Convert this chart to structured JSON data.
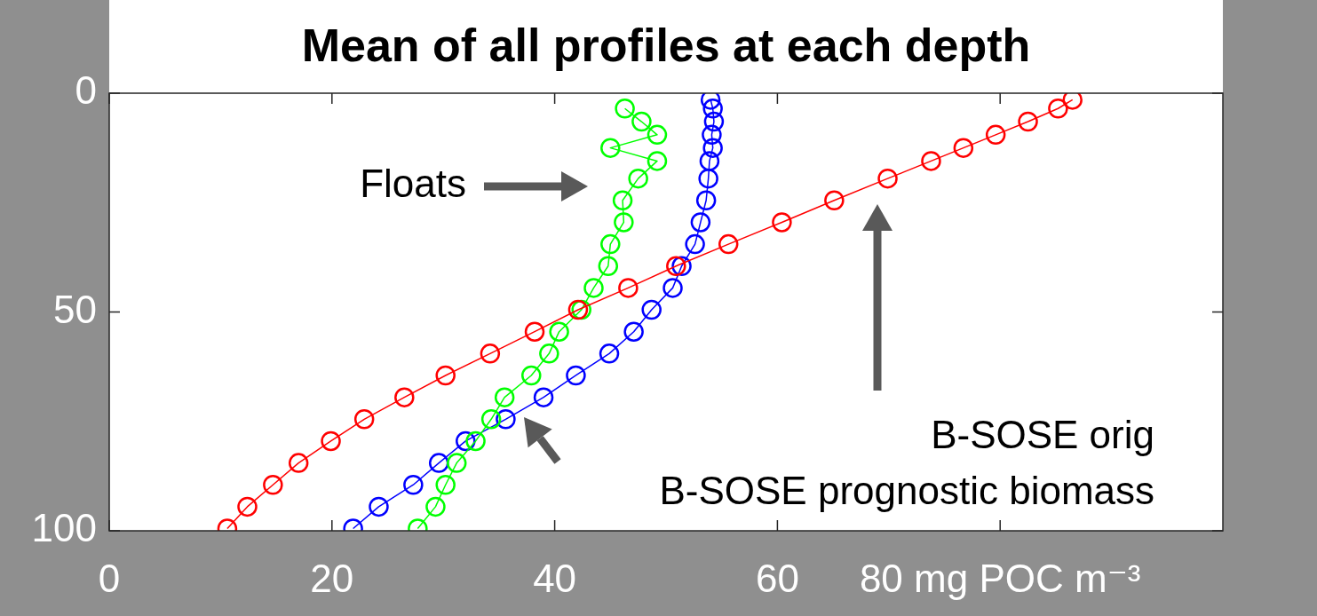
{
  "chart_data": {
    "type": "line",
    "title": "Mean of all profiles at each depth",
    "marker": "circle",
    "grid": false,
    "legend": false,
    "xlim": [
      0,
      100
    ],
    "xticks": [
      0,
      20,
      40,
      60,
      {
        "value": 80,
        "label": "80 mg POC m⁻³"
      }
    ],
    "ylim": [
      100,
      0
    ],
    "yticks": [
      0,
      50,
      100
    ],
    "annotations": [
      "B-SOSE orig",
      "Floats",
      "B-SOSE prognostic biomass"
    ],
    "series": [
      {
        "color": "#ff0000",
        "x": [
          86.5,
          85.2,
          82.5,
          79.6,
          76.7,
          73.8,
          69.9,
          65.1,
          60.4,
          55.6,
          50.9,
          46.6,
          42.1,
          38.2,
          34.2,
          30.2,
          26.5,
          22.9,
          19.9,
          17.0,
          14.7,
          12.4,
          10.6
        ],
        "values": [
          1.5,
          3.5,
          6.5,
          9.5,
          12.5,
          15.5,
          19.5,
          24.5,
          29.5,
          34.5,
          39.5,
          44.5,
          49.5,
          54.5,
          59.5,
          64.5,
          69.5,
          74.5,
          79.5,
          84.5,
          89.5,
          94.5,
          99.5
        ]
      },
      {
        "color": "#00ff00",
        "x": [
          46.3,
          47.8,
          49.2,
          45.0,
          49.2,
          47.5,
          46.1,
          46.2,
          45.0,
          44.8,
          43.5,
          42.4,
          40.4,
          39.5,
          37.9,
          35.5,
          34.3,
          32.9,
          31.2,
          30.2,
          29.3,
          27.7
        ],
        "values": [
          3.5,
          6.5,
          9.5,
          12.5,
          15.5,
          19.5,
          24.5,
          29.5,
          34.5,
          39.5,
          44.5,
          49.5,
          54.5,
          59.5,
          64.5,
          69.5,
          74.5,
          79.5,
          84.5,
          89.5,
          94.5,
          99.5
        ]
      },
      {
        "color": "#0000ff",
        "x": [
          54.0,
          54.2,
          54.3,
          54.1,
          54.2,
          53.9,
          53.8,
          53.6,
          53.1,
          52.6,
          51.4,
          50.6,
          48.7,
          47.1,
          44.9,
          41.9,
          39.0,
          35.6,
          32.0,
          29.6,
          27.3,
          24.2,
          21.9
        ],
        "values": [
          1.5,
          3.5,
          6.5,
          9.5,
          12.5,
          15.5,
          19.5,
          24.5,
          29.5,
          34.5,
          39.5,
          44.5,
          49.5,
          54.5,
          59.5,
          64.5,
          69.5,
          74.5,
          79.5,
          84.5,
          89.5,
          94.5,
          99.5
        ]
      }
    ]
  }
}
